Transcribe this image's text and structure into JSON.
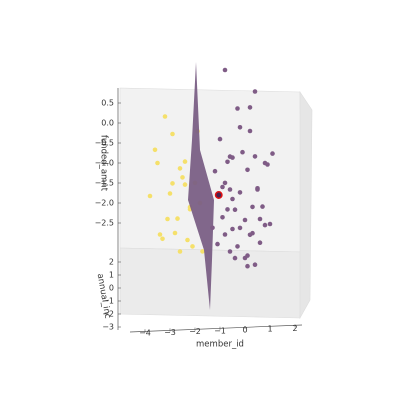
{
  "chart_data": {
    "type": "scatter3d",
    "xlabel": "member_id",
    "ylabel": "annual_inc",
    "zlabel": "funded_amnt",
    "xticks": [
      {
        "value": -4,
        "label": "−4"
      },
      {
        "value": -3,
        "label": "−3"
      },
      {
        "value": -2,
        "label": "−2"
      },
      {
        "value": -1,
        "label": "−1"
      },
      {
        "value": 0,
        "label": "0"
      },
      {
        "value": 1,
        "label": "1"
      },
      {
        "value": 2,
        "label": "2"
      }
    ],
    "yticks": [
      {
        "value": 2,
        "label": "2"
      },
      {
        "value": 1,
        "label": "1"
      },
      {
        "value": 0,
        "label": "0"
      },
      {
        "value": -1,
        "label": "−1"
      },
      {
        "value": -2,
        "label": "−2"
      },
      {
        "value": -3,
        "label": "−3"
      }
    ],
    "zticks": [
      {
        "value": 0.5,
        "label": "0.5"
      },
      {
        "value": 0.0,
        "label": "0.0"
      },
      {
        "value": -0.5,
        "label": "−0.5"
      },
      {
        "value": -1.0,
        "label": "−1.0"
      },
      {
        "value": -1.5,
        "label": "−1.5"
      },
      {
        "value": -2.0,
        "label": "−2.0"
      },
      {
        "value": -2.5,
        "label": "−2.5"
      }
    ],
    "series": [
      {
        "color": "#f5e06a",
        "x": [
          -3.2,
          -2.9,
          -3.5,
          -2.6,
          -3.0,
          -2.4,
          -3.8,
          -2.7,
          -2.2,
          -3.1,
          -2.5,
          -1.9,
          -3.4,
          -2.8,
          -2.3,
          -2.0,
          -3.6,
          -2.6,
          -2.1,
          -1.8,
          -2.9,
          -2.4,
          -1.7,
          -3.3,
          -2.2
        ],
        "y": [
          0.5,
          1.0,
          0.0,
          0.2,
          -0.5,
          0.8,
          -1.0,
          -1.2,
          0.3,
          0.0,
          -0.8,
          0.6,
          -1.5,
          -2.0,
          -1.0,
          -0.3,
          0.4,
          -2.5,
          -1.8,
          0.0,
          1.2,
          -0.2,
          -2.8,
          -0.6,
          -1.4
        ],
        "z": [
          0.0,
          -0.6,
          -1.0,
          -1.2,
          -1.6,
          -1.8,
          -1.5,
          -2.0,
          -2.2,
          -2.4,
          -1.1,
          -0.4,
          -2.3,
          -2.1,
          -2.6,
          -1.4,
          -0.8,
          -2.4,
          -2.5,
          -2.0,
          -1.9,
          -0.9,
          -2.3,
          -2.7,
          -1.7
        ]
      },
      {
        "color": "#7f5c86",
        "x": [
          -0.8,
          0.4,
          -0.3,
          0.2,
          -1.0,
          -0.5,
          0.8,
          -0.6,
          0.1,
          0.5,
          -0.9,
          -0.2,
          0.3,
          0.9,
          -0.7,
          -0.4,
          0.0,
          0.6,
          -1.2,
          -0.1,
          0.7,
          -0.8,
          0.2,
          -0.5,
          0.4,
          -0.3,
          1.0,
          -0.6,
          0.1,
          -1.1,
          -0.2,
          0.5,
          -0.9,
          0.3,
          -0.4,
          0.0,
          -0.7,
          0.6,
          -1.3,
          0.2,
          -0.8,
          0.1,
          -0.5,
          1.1,
          -0.2,
          0.4,
          -0.6,
          0.8
        ],
        "y": [
          1.0,
          1.5,
          0.5,
          0.0,
          0.3,
          -0.2,
          0.0,
          0.8,
          0.4,
          -0.5,
          0.0,
          0.2,
          -0.3,
          0.5,
          -0.8,
          0.1,
          -1.0,
          0.0,
          0.6,
          -0.4,
          -1.2,
          -1.5,
          -0.6,
          -2.0,
          0.2,
          -1.8,
          -1.0,
          -2.5,
          -2.2,
          -0.7,
          0.9,
          -0.1,
          -1.1,
          -1.4,
          -2.7,
          -3.0,
          0.4,
          -0.9,
          -1.6,
          1.2,
          -0.3,
          -2.4,
          0.0,
          -0.2,
          -1.3,
          -2.9,
          -0.5,
          -1.7
        ],
        "z": [
          1.0,
          0.3,
          0.2,
          -0.2,
          -0.5,
          -0.8,
          -1.0,
          -1.1,
          -1.3,
          -1.5,
          -1.6,
          -1.8,
          -2.0,
          -1.2,
          -1.9,
          -2.2,
          -2.1,
          -2.4,
          -1.4,
          -0.6,
          -1.7,
          -2.3,
          -2.6,
          -2.0,
          -0.9,
          -2.5,
          -2.2,
          -2.4,
          -2.6,
          -2.8,
          -0.4,
          -1.6,
          -2.0,
          -2.3,
          -2.5,
          -2.4,
          -1.1,
          -2.7,
          -2.1,
          0.0,
          -1.4,
          -2.8,
          -1.9,
          -0.7,
          -2.2,
          -2.6,
          -1.5,
          -2.0
        ]
      }
    ],
    "highlight": {
      "x": -1.05,
      "y": 0,
      "z": -1.8,
      "color": "#e01010"
    }
  }
}
